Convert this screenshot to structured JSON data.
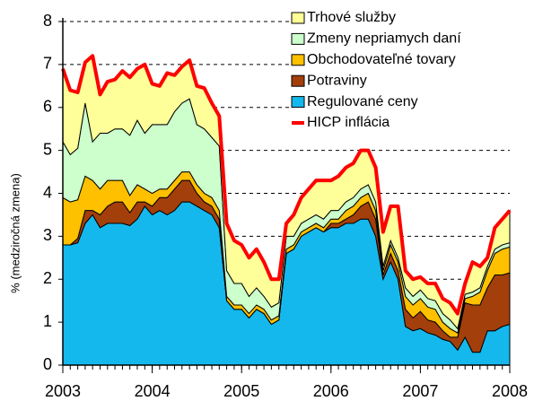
{
  "chart_data": {
    "type": "stacked_area",
    "y_label": "% (medziročná zmena)",
    "x": [
      2003,
      2003.083,
      2003.167,
      2003.25,
      2003.333,
      2003.417,
      2003.5,
      2003.583,
      2003.667,
      2003.75,
      2003.833,
      2003.917,
      2004,
      2004.083,
      2004.167,
      2004.25,
      2004.333,
      2004.417,
      2004.5,
      2004.583,
      2004.667,
      2004.75,
      2004.833,
      2004.917,
      2005,
      2005.083,
      2005.167,
      2005.25,
      2005.333,
      2005.417,
      2005.5,
      2005.583,
      2005.667,
      2005.75,
      2005.833,
      2005.917,
      2006,
      2006.083,
      2006.167,
      2006.25,
      2006.333,
      2006.417,
      2006.5,
      2006.583,
      2006.667,
      2006.75,
      2006.833,
      2006.917,
      2007,
      2007.083,
      2007.167,
      2007.25,
      2007.333,
      2007.417,
      2007.5,
      2007.583,
      2007.667,
      2007.75,
      2007.833,
      2007.917,
      2008
    ],
    "series": [
      {
        "name": "Regulované ceny",
        "color": "#14b8ec",
        "values": [
          2.8,
          2.8,
          2.85,
          3.3,
          3.5,
          3.2,
          3.3,
          3.3,
          3.3,
          3.25,
          3.4,
          3.7,
          3.5,
          3.6,
          3.5,
          3.6,
          3.8,
          3.8,
          3.7,
          3.6,
          3.5,
          3.2,
          1.5,
          1.3,
          1.3,
          1.1,
          1.3,
          1.2,
          0.95,
          1.05,
          2.6,
          2.7,
          3.0,
          3.1,
          3.2,
          3.1,
          3.2,
          3.2,
          3.3,
          3.3,
          3.4,
          3.4,
          3.0,
          2.0,
          2.4,
          2.0,
          0.9,
          0.8,
          0.85,
          0.75,
          0.7,
          0.6,
          0.55,
          0.35,
          0.65,
          0.3,
          0.3,
          0.8,
          0.8,
          0.9,
          0.95
        ]
      },
      {
        "name": "Potraviny",
        "color": "#a33f0b",
        "values": [
          0,
          0,
          0.1,
          0.3,
          0.1,
          0.3,
          0.4,
          0.5,
          0.5,
          0.3,
          0.4,
          0.1,
          0.2,
          0.3,
          0.4,
          0.5,
          0.5,
          0.5,
          0.3,
          0.2,
          0.2,
          0.2,
          0,
          0,
          0,
          0,
          0,
          0,
          0,
          0,
          0,
          0,
          0,
          0,
          0,
          0,
          0.1,
          0.1,
          0.1,
          0.2,
          0.3,
          0.4,
          0.4,
          0.1,
          0.2,
          0.2,
          0.4,
          0.3,
          0.4,
          0.3,
          0.3,
          0.2,
          0.1,
          0.3,
          0.8,
          1.1,
          1.1,
          1.0,
          1.3,
          1.2,
          1.2
        ]
      },
      {
        "name": "Obchodovateľné tovary",
        "color": "#ffc000",
        "values": [
          1.1,
          1.0,
          0.9,
          0.8,
          0.7,
          0.6,
          0.6,
          0.5,
          0.5,
          0.4,
          0.4,
          0.3,
          0.3,
          0.2,
          0.2,
          0.2,
          0.2,
          0.2,
          0.2,
          0.2,
          0.2,
          0.2,
          0.1,
          0.1,
          0.1,
          0.1,
          0.1,
          0.1,
          0.1,
          0.1,
          0.1,
          0.1,
          0.1,
          0.1,
          0.1,
          0.1,
          0.1,
          0.1,
          0.2,
          0.2,
          0.2,
          0.2,
          0.2,
          0.1,
          0.2,
          0.2,
          0.3,
          0.3,
          0.3,
          0.3,
          0.3,
          0.2,
          0.2,
          0.1,
          0.1,
          0.2,
          0.3,
          0.4,
          0.5,
          0.6,
          0.6
        ]
      },
      {
        "name": "Zmeny nepriamych daní",
        "color": "#ccffcc",
        "values": [
          1.3,
          1.1,
          1.2,
          1.7,
          0.9,
          1.3,
          1.1,
          1.2,
          1.2,
          1.4,
          1.5,
          1.3,
          1.6,
          1.5,
          1.5,
          1.6,
          1.6,
          1.7,
          1.4,
          1.5,
          1.4,
          1.5,
          0.6,
          0.5,
          0.5,
          0.4,
          0.4,
          0.3,
          0.3,
          0.3,
          0.3,
          0.2,
          0.2,
          0.2,
          0.2,
          0.2,
          0.2,
          0.2,
          0.2,
          0.2,
          0.2,
          0.2,
          0.2,
          0.1,
          0.1,
          0.1,
          0.2,
          0.2,
          0.2,
          0.2,
          0.2,
          0.2,
          0.2,
          0.1,
          0.1,
          0.1,
          0.1,
          0.1,
          0.1,
          0.1,
          0.1
        ]
      },
      {
        "name": "Trhové služby",
        "color": "#ffff99",
        "values": [
          1.7,
          1.5,
          1.3,
          0.95,
          2.0,
          0.9,
          1.2,
          1.15,
          1.35,
          1.35,
          1.2,
          1.6,
          0.95,
          0.9,
          1.2,
          0.85,
          0.85,
          0.9,
          0.9,
          0.95,
          0.8,
          0.7,
          1.1,
          1.0,
          0.9,
          0.9,
          0.9,
          0.8,
          0.65,
          0.55,
          0.3,
          0.5,
          0.6,
          0.7,
          0.8,
          0.9,
          0.7,
          0.8,
          0.8,
          0.8,
          0.9,
          0.8,
          0.8,
          0.8,
          0.8,
          1.2,
          0.4,
          0.4,
          0.3,
          0.35,
          0.4,
          0.35,
          0.4,
          0.35,
          0.25,
          0.7,
          0.5,
          0.2,
          0.5,
          0.6,
          0.75
        ]
      },
      {
        "name": "HICP inflácia",
        "color": "#ff0000",
        "kind": "line",
        "values": [
          6.9,
          6.4,
          6.35,
          7.05,
          7.2,
          6.3,
          6.6,
          6.65,
          6.85,
          6.7,
          6.9,
          7.0,
          6.55,
          6.5,
          6.8,
          6.75,
          6.95,
          7.1,
          6.5,
          6.45,
          6.1,
          5.8,
          3.3,
          2.9,
          2.8,
          2.5,
          2.7,
          2.4,
          2.0,
          2.0,
          3.3,
          3.5,
          3.9,
          4.1,
          4.3,
          4.3,
          4.3,
          4.4,
          4.6,
          4.7,
          5.0,
          5.0,
          4.6,
          3.1,
          3.7,
          3.7,
          2.2,
          2.0,
          2.05,
          1.9,
          1.9,
          1.55,
          1.45,
          1.2,
          1.9,
          2.4,
          2.3,
          2.5,
          3.2,
          3.4,
          3.6
        ]
      }
    ],
    "xlim": [
      2003,
      2008
    ],
    "xticks": [
      2003,
      2004,
      2005,
      2006,
      2007,
      2008
    ],
    "ylim": [
      0,
      8
    ],
    "yticks": [
      0,
      1,
      2,
      3,
      4,
      5,
      6,
      7,
      8
    ],
    "grid": true,
    "legend": "upper right"
  }
}
